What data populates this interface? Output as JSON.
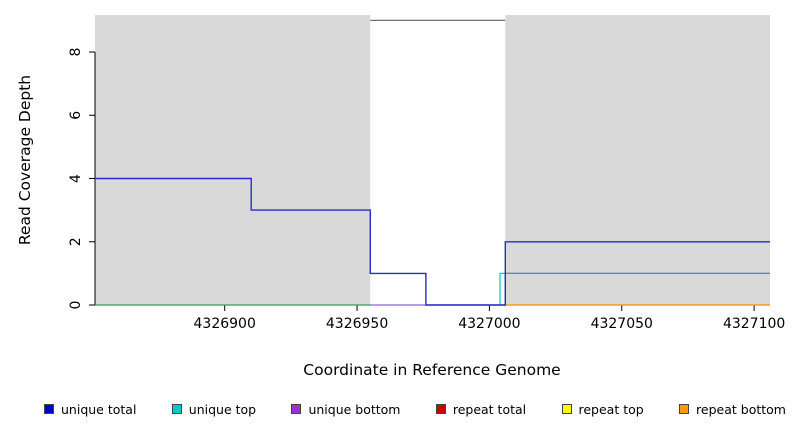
{
  "chart_data": {
    "type": "line",
    "title": "",
    "xlabel": "Coordinate in Reference Genome",
    "ylabel": "Read Coverage Depth",
    "xlim": [
      4326851,
      4327106
    ],
    "ylim": [
      0,
      9.17
    ],
    "xticks": [
      4326900,
      4326950,
      4327000,
      4327050,
      4327100
    ],
    "yticks": [
      0,
      2,
      4,
      6,
      8
    ],
    "grid": false,
    "legend_position": "bottom",
    "shaded_regions": [
      {
        "x1": 4326851,
        "x2": 4326955,
        "color": "#d9d9d9"
      },
      {
        "x1": 4327006,
        "x2": 4327106,
        "color": "#d9d9d9"
      }
    ],
    "gap_top_line": {
      "x1": 4326955,
      "x2": 4327006,
      "y": 9.0,
      "color": "#707070"
    },
    "series": [
      {
        "name": "baseline left (green)",
        "color": "#2ca05a",
        "width": 1.2,
        "steps": [
          [
            4326851,
            0
          ],
          [
            4326955,
            0
          ]
        ]
      },
      {
        "name": "repeat bottom",
        "color": "#ff8c00",
        "width": 1.2,
        "steps": [
          [
            4327006,
            0
          ],
          [
            4327106,
            0
          ]
        ]
      },
      {
        "name": "unique top",
        "color": "#00cccc",
        "width": 1.2,
        "steps": [
          [
            4327004,
            0
          ],
          [
            4327004,
            1
          ],
          [
            4327106,
            1
          ]
        ]
      },
      {
        "name": "unique bottom",
        "color": "#8866dd",
        "width": 1.2,
        "steps": [
          [
            4326955,
            0
          ],
          [
            4327006,
            0
          ],
          [
            4327006,
            1
          ],
          [
            4327106,
            1
          ]
        ]
      },
      {
        "name": "unique total",
        "color": "#2a2acc",
        "width": 1.4,
        "steps": [
          [
            4326851,
            4
          ],
          [
            4326910,
            4
          ],
          [
            4326910,
            3
          ],
          [
            4326955,
            3
          ],
          [
            4326955,
            1
          ],
          [
            4326976,
            1
          ],
          [
            4326976,
            0
          ],
          [
            4327006,
            0
          ],
          [
            4327006,
            2
          ],
          [
            4327106,
            2
          ]
        ]
      }
    ],
    "legend": [
      {
        "label": "unique total",
        "color": "#0000cc"
      },
      {
        "label": "unique top",
        "color": "#00cccc"
      },
      {
        "label": "unique bottom",
        "color": "#9932cc"
      },
      {
        "label": "repeat total",
        "color": "#cc0000"
      },
      {
        "label": "repeat top",
        "color": "#ffff00"
      },
      {
        "label": "repeat bottom",
        "color": "#ff9900"
      }
    ]
  }
}
